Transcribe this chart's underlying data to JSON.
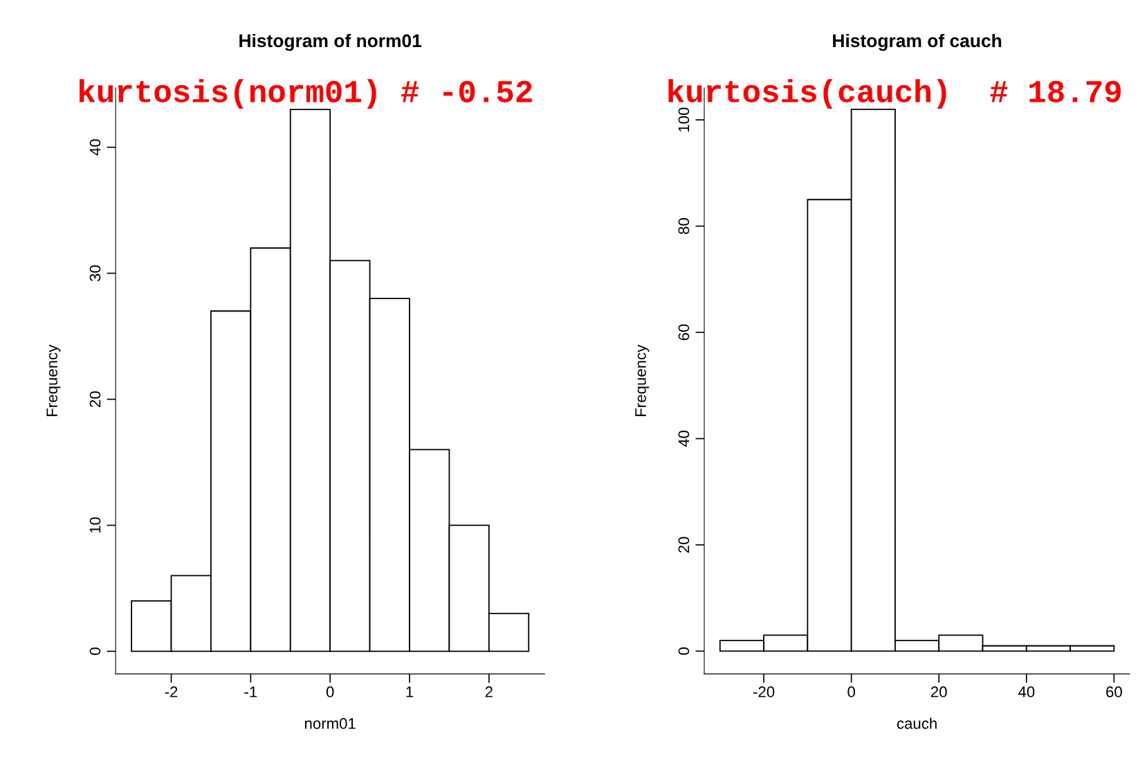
{
  "chart_data": [
    {
      "type": "histogram",
      "title": "Histogram of norm01",
      "xlabel": "norm01",
      "ylabel": "Frequency",
      "color": "#ffffff",
      "annotations": [
        "kurtosis(norm01) # -0.52"
      ],
      "bins": [
        -2.5,
        -2,
        -1.5,
        -1,
        -0.5,
        0,
        0.5,
        1,
        1.5,
        2,
        2.5
      ],
      "values": [
        4,
        6,
        27,
        32,
        43,
        31,
        28,
        16,
        10,
        3
      ],
      "xlim": [
        -2.7,
        2.7
      ],
      "ylim": [
        -1.8,
        44.7
      ],
      "xticks": [
        -2,
        -1,
        0,
        1,
        2
      ],
      "yticks": [
        0,
        10,
        20,
        30,
        40
      ]
    },
    {
      "type": "histogram",
      "title": "Histogram of cauch",
      "xlabel": "cauch",
      "ylabel": "Frequency",
      "color": "#ffffff",
      "annotations": [
        "kurtosis(cauch)  # 18.79"
      ],
      "bins": [
        -30,
        -20,
        -10,
        0,
        10,
        20,
        30,
        40,
        50,
        60
      ],
      "values": [
        2,
        3,
        85,
        102,
        2,
        3,
        1,
        1,
        1
      ],
      "xlim": [
        -33.6,
        63.6
      ],
      "ylim": [
        -4.3,
        106
      ],
      "xticks": [
        -20,
        0,
        20,
        40,
        60
      ],
      "yticks": [
        0,
        20,
        40,
        60,
        80,
        100
      ]
    }
  ]
}
